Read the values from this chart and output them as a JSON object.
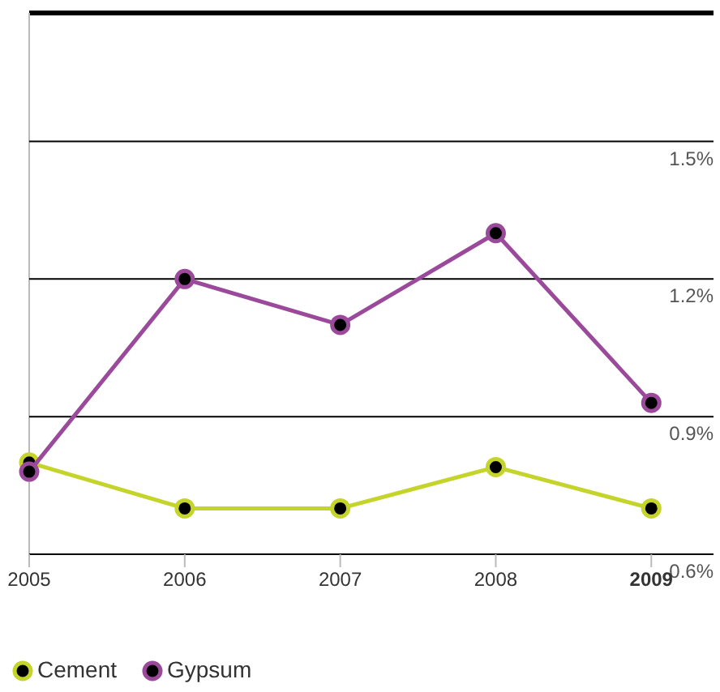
{
  "chart_data": {
    "type": "line",
    "x": [
      2005,
      2006,
      2007,
      2008,
      2009
    ],
    "series": [
      {
        "name": "Cement",
        "color": "#c5d42b",
        "values": [
          0.8,
          0.7,
          0.7,
          0.79,
          0.7
        ]
      },
      {
        "name": "Gypsum",
        "color": "#9b4a9b",
        "values": [
          0.78,
          1.2,
          1.1,
          1.3,
          0.93
        ]
      }
    ],
    "xlim": [
      2005,
      2009.4
    ],
    "xticks": [
      2005,
      2006,
      2007,
      2008,
      2009
    ],
    "ylim": [
      0.6,
      1.78
    ],
    "yticks": [
      {
        "value": 0.6,
        "label": "0.6%"
      },
      {
        "value": 0.9,
        "label": "0.9%"
      },
      {
        "value": 1.2,
        "label": "1.2%"
      },
      {
        "value": 1.5,
        "label": "1.5%"
      }
    ],
    "grid": "y",
    "legend": "bottom",
    "marker": "circle",
    "line_style": "solid"
  }
}
